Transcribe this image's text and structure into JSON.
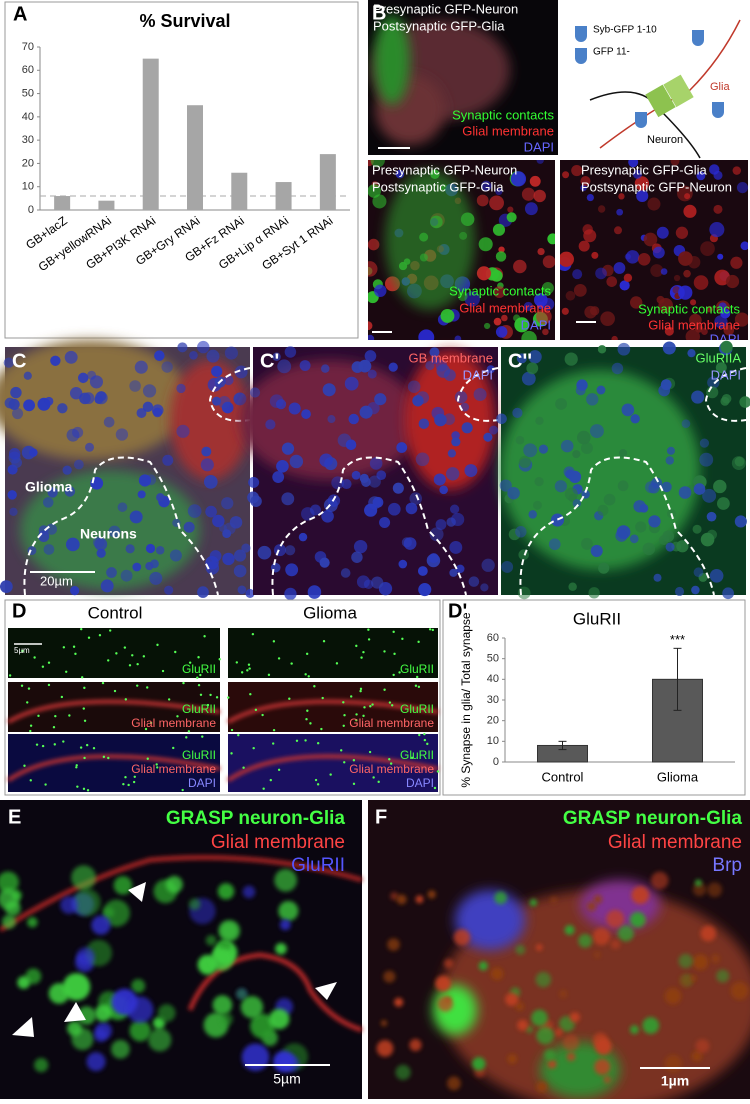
{
  "chart_data": [
    {
      "type": "bar",
      "title": "% Survival",
      "categories": [
        "GB+lacZ",
        "GB+yellowRNAi",
        "GB+PI3K RNAi",
        "GB+Gry RNAi",
        "GB+Fz RNAi",
        "GB+Lip α RNAi",
        "GB+Syt 1 RNAi"
      ],
      "values": [
        6,
        4,
        65,
        45,
        16,
        12,
        24
      ],
      "color": "#a6a6a6",
      "ylim": [
        0,
        70
      ],
      "yticks": [
        0,
        10,
        20,
        30,
        40,
        50,
        60,
        70
      ],
      "reference_line": 6
    },
    {
      "type": "bar",
      "title": "GluRII",
      "y_label": "% Synapse in glia/ Total synapse",
      "categories": [
        "Control",
        "Glioma"
      ],
      "values": [
        8,
        40
      ],
      "errors": [
        2,
        15
      ],
      "annotation": "***",
      "color": "#595959",
      "ylim": [
        0,
        60
      ],
      "yticks": [
        0,
        10,
        20,
        30,
        40,
        50,
        60
      ]
    }
  ],
  "panel_a": {
    "label": "A"
  },
  "panel_b": {
    "label": "B",
    "image_1": [
      "Presynaptic GFP-Neuron",
      "Postsynaptic GFP-Glia"
    ],
    "image_2": [
      "Presynaptic GFP-Neuron",
      "Postsynaptic GFP-Glia"
    ],
    "image_3": [
      "Presynaptic GFP-Glia",
      "Postsynaptic GFP-Neuron"
    ],
    "legend": [
      "Synaptic contacts",
      "Glial membrane",
      "DAPI"
    ],
    "diagram": {
      "syb": "Syb-GFP 1-10",
      "gfp": "GFP 11-",
      "glia": "Glia",
      "neuron": "Neuron"
    }
  },
  "panel_c": {
    "label": "C",
    "glioma": "Glioma",
    "neurons": "Neurons",
    "scale": "20µm"
  },
  "panel_c1": {
    "label": "C'",
    "texts": [
      "GB membrane",
      "DAPI"
    ]
  },
  "panel_c2": {
    "label": "C''",
    "texts": [
      "GluRIIA",
      "DAPI"
    ]
  },
  "panel_d": {
    "label": "D",
    "columns": [
      "Control",
      "Glioma"
    ],
    "scale": "5µm",
    "rows": [
      [
        "GluRII"
      ],
      [
        "GluRII",
        "Glial membrane"
      ],
      [
        "GluRII",
        "Glial membrane",
        "DAPI"
      ]
    ]
  },
  "panel_d1": {
    "label": "D'"
  },
  "panel_e": {
    "label": "E",
    "texts": [
      "GRASP neuron-Glia",
      "Glial membrane",
      "GluRII"
    ],
    "scale": "5µm"
  },
  "panel_f": {
    "label": "F",
    "texts": [
      "GRASP neuron-Glia",
      "Glial membrane",
      "Brp"
    ],
    "scale": "1µm"
  }
}
